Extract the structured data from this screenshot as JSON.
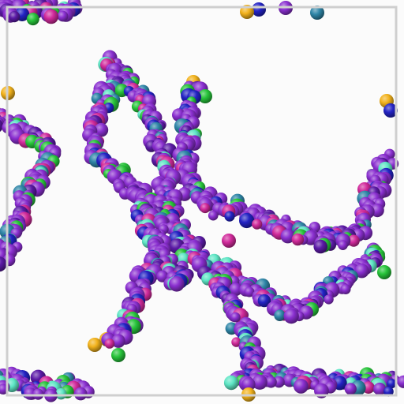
{
  "scene": {
    "subject": "molecular-simulation-render",
    "background": "#fbfbfb",
    "box_stroke": "#cfcfcf",
    "light": "top-left"
  },
  "palette": {
    "purple": "#8a2fd0",
    "purple_dark": "#5b1aa6",
    "blue": "#2323c4",
    "teal": "#2f86a8",
    "aqua": "#5ee6c5",
    "green": "#27c43a",
    "magenta": "#d12a9b",
    "yellow": "#f2b21c",
    "red": "#e0285a"
  }
}
